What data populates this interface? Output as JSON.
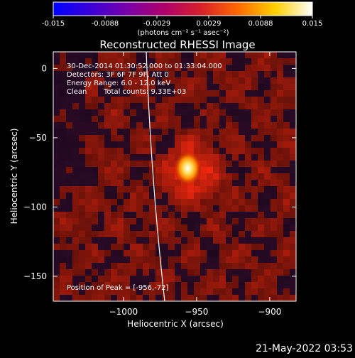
{
  "colorbar": {
    "tick_labels": [
      "-0.015",
      "-0.0088",
      "-0.0029",
      "0.0029",
      "0.0088",
      "0.015"
    ],
    "units_label": "(photons cm⁻² s⁻¹ asec⁻²)",
    "colors": [
      "#0000ff",
      "#3a00d8",
      "#7a00a8",
      "#b0006a",
      "#d8202a",
      "#ff6a00",
      "#ffd000",
      "#ffffff"
    ]
  },
  "annotations": {
    "time_range": "30-Dec-2014 01:30:52.000 to 01:33:04.000",
    "detectors": "Detectors: 3F 6F 7F 9F, Att 0",
    "energy": "Energy Range: 6.0 - 12.0 keV",
    "clean_label": "Clean",
    "total_counts": "Total counts: 9.33E+03",
    "peak": "Position of Peak = [-956,-72]"
  },
  "footer_date": "21-May-2022 03:53",
  "chart_data": {
    "type": "heatmap",
    "title": "Reconstructed RHESSI Image",
    "xlabel": "Heliocentric X (arcsec)",
    "ylabel": "Heliocentric Y (arcsec)",
    "xlim": [
      -1048,
      -882
    ],
    "ylim": [
      -168,
      12
    ],
    "x_ticks": [
      -1000,
      -950,
      -900
    ],
    "y_ticks": [
      0,
      -50,
      -100,
      -150
    ],
    "x_tick_labels": [
      "−1000",
      "−950",
      "−900"
    ],
    "y_tick_labels": [
      "0",
      "−50",
      "−100",
      "−150"
    ],
    "peak_position": [
      -956,
      -72
    ],
    "colorbar_range": [
      -0.015,
      0.015
    ]
  }
}
